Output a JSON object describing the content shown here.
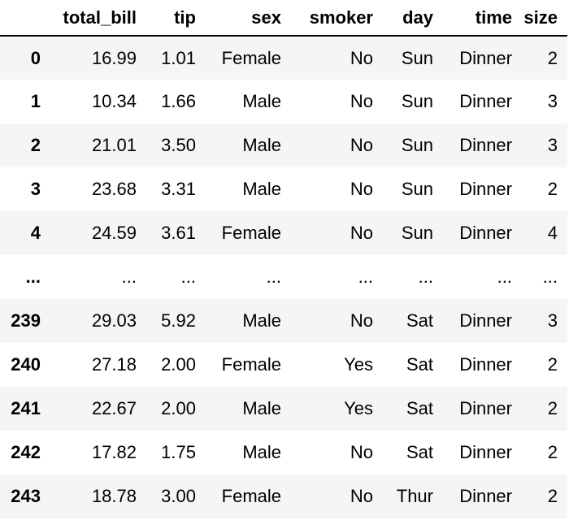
{
  "table": {
    "columns": [
      "",
      "total_bill",
      "tip",
      "sex",
      "smoker",
      "day",
      "time",
      "size"
    ],
    "rows": [
      [
        "0",
        "16.99",
        "1.01",
        "Female",
        "No",
        "Sun",
        "Dinner",
        "2"
      ],
      [
        "1",
        "10.34",
        "1.66",
        "Male",
        "No",
        "Sun",
        "Dinner",
        "3"
      ],
      [
        "2",
        "21.01",
        "3.50",
        "Male",
        "No",
        "Sun",
        "Dinner",
        "3"
      ],
      [
        "3",
        "23.68",
        "3.31",
        "Male",
        "No",
        "Sun",
        "Dinner",
        "2"
      ],
      [
        "4",
        "24.59",
        "3.61",
        "Female",
        "No",
        "Sun",
        "Dinner",
        "4"
      ],
      [
        "...",
        "...",
        "...",
        "...",
        "...",
        "...",
        "...",
        "..."
      ],
      [
        "239",
        "29.03",
        "5.92",
        "Male",
        "No",
        "Sat",
        "Dinner",
        "3"
      ],
      [
        "240",
        "27.18",
        "2.00",
        "Female",
        "Yes",
        "Sat",
        "Dinner",
        "2"
      ],
      [
        "241",
        "22.67",
        "2.00",
        "Male",
        "Yes",
        "Sat",
        "Dinner",
        "2"
      ],
      [
        "242",
        "17.82",
        "1.75",
        "Male",
        "No",
        "Sat",
        "Dinner",
        "2"
      ],
      [
        "243",
        "18.78",
        "3.00",
        "Female",
        "No",
        "Thur",
        "Dinner",
        "2"
      ]
    ]
  },
  "colors": {
    "stripe": "#f5f5f5",
    "background": "#ffffff",
    "text": "#000000"
  }
}
